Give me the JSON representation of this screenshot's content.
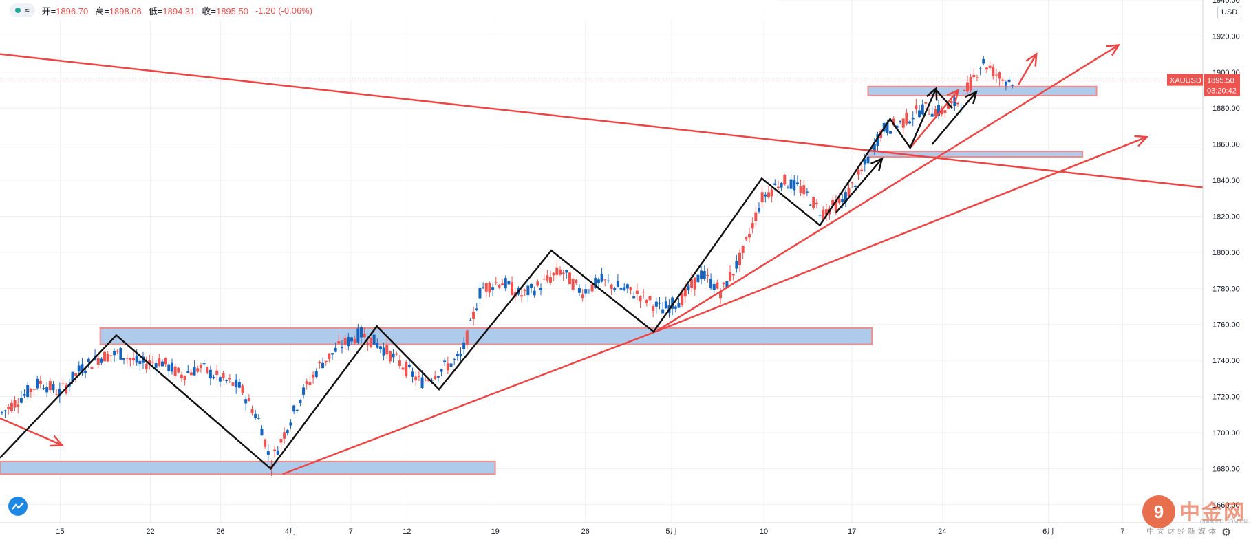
{
  "header": {
    "symbol_pill": "≈",
    "open_label": "开=",
    "open_value": "1896.70",
    "high_label": "高=",
    "high_value": "1898.06",
    "low_label": "低=",
    "low_value": "1894.31",
    "close_label": "收=",
    "close_value": "1895.50",
    "change_text": "-1.20 (-0.06%)"
  },
  "currency": "USD",
  "settings_icon": "gear-icon",
  "watermark": {
    "logo_glyph": "9",
    "title": "中金网",
    "domain": "CNGOLD.COM.CN",
    "subtitle": "中文财经新媒体"
  },
  "chart_data": {
    "type": "candlestick",
    "symbol": "XAUUSD",
    "last_price": 1895.5,
    "last_price_text": "1895.50",
    "countdown": "03:20:42",
    "ylim": [
      1650,
      1940
    ],
    "xlim": [
      0,
      60
    ],
    "y_ticks": [
      1660,
      1680,
      1700,
      1720,
      1740,
      1760,
      1780,
      1800,
      1820,
      1840,
      1860,
      1880,
      1900,
      1920,
      1940
    ],
    "y_tick_labels": [
      "1660.00",
      "1680.00",
      "1700.00",
      "1720.00",
      "1740.00",
      "1760.00",
      "1780.00",
      "1800.00",
      "1820.00",
      "1840.00",
      "1860.00",
      "1880.00",
      "1900.00",
      "1920.00",
      "1940.00"
    ],
    "x_ticks": [
      {
        "pos": 3.0,
        "label": "15"
      },
      {
        "pos": 7.5,
        "label": "22"
      },
      {
        "pos": 11.0,
        "label": "26"
      },
      {
        "pos": 14.5,
        "label": "4月"
      },
      {
        "pos": 17.5,
        "label": "7"
      },
      {
        "pos": 20.3,
        "label": "12"
      },
      {
        "pos": 24.7,
        "label": "19"
      },
      {
        "pos": 29.2,
        "label": "26"
      },
      {
        "pos": 33.5,
        "label": "5月"
      },
      {
        "pos": 38.1,
        "label": "10"
      },
      {
        "pos": 42.5,
        "label": "17"
      },
      {
        "pos": 47.0,
        "label": "24"
      },
      {
        "pos": 52.3,
        "label": "6月"
      },
      {
        "pos": 56.0,
        "label": "7"
      }
    ],
    "price_path": [
      [
        0,
        1710
      ],
      [
        2,
        1728
      ],
      [
        3,
        1722
      ],
      [
        4,
        1735
      ],
      [
        5,
        1742
      ],
      [
        6,
        1744
      ],
      [
        7,
        1738
      ],
      [
        8,
        1740
      ],
      [
        9,
        1732
      ],
      [
        10,
        1736
      ],
      [
        11,
        1730
      ],
      [
        12,
        1725
      ],
      [
        13,
        1705
      ],
      [
        13.5,
        1683
      ],
      [
        14,
        1695
      ],
      [
        15,
        1720
      ],
      [
        16,
        1738
      ],
      [
        17,
        1748
      ],
      [
        18,
        1755
      ],
      [
        19,
        1748
      ],
      [
        20,
        1738
      ],
      [
        21,
        1728
      ],
      [
        22,
        1735
      ],
      [
        23,
        1742
      ],
      [
        23.5,
        1760
      ],
      [
        24,
        1780
      ],
      [
        25,
        1784
      ],
      [
        26,
        1776
      ],
      [
        27,
        1782
      ],
      [
        28,
        1790
      ],
      [
        29,
        1778
      ],
      [
        30,
        1784
      ],
      [
        31,
        1780
      ],
      [
        32,
        1776
      ],
      [
        33,
        1768
      ],
      [
        34,
        1774
      ],
      [
        35,
        1788
      ],
      [
        36,
        1778
      ],
      [
        37,
        1798
      ],
      [
        38,
        1830
      ],
      [
        39,
        1840
      ],
      [
        40,
        1835
      ],
      [
        41,
        1822
      ],
      [
        42,
        1828
      ],
      [
        43,
        1845
      ],
      [
        44,
        1868
      ],
      [
        45,
        1872
      ],
      [
        46,
        1880
      ],
      [
        47,
        1878
      ],
      [
        48,
        1885
      ],
      [
        49,
        1906
      ],
      [
        50,
        1896
      ],
      [
        50.5,
        1895.5
      ]
    ],
    "zones": [
      {
        "x0": 0.0,
        "x1": 24.7,
        "y0": 1677,
        "y1": 1684
      },
      {
        "x0": 5.0,
        "x1": 43.5,
        "y0": 1749,
        "y1": 1758
      },
      {
        "x0": 43.3,
        "x1": 54.7,
        "y0": 1887,
        "y1": 1892
      },
      {
        "x0": 43.3,
        "x1": 54.0,
        "y0": 1853,
        "y1": 1856
      }
    ],
    "red_lines": [
      {
        "points": [
          [
            0.0,
            1910
          ],
          [
            60.0,
            1836
          ]
        ]
      },
      {
        "points": [
          [
            14.1,
            1677
          ],
          [
            32.7,
            1756
          ],
          [
            55.8,
            1915
          ]
        ],
        "arrow": true
      },
      {
        "points": [
          [
            32.7,
            1756
          ],
          [
            57.2,
            1864
          ]
        ],
        "arrow": true
      },
      {
        "points": [
          [
            0.0,
            1708
          ],
          [
            3.1,
            1693
          ]
        ],
        "arrow": true
      },
      {
        "points": [
          [
            45.4,
            1858
          ],
          [
            47.8,
            1890
          ]
        ],
        "arrow": true
      },
      {
        "points": [
          [
            50.8,
            1893
          ],
          [
            51.7,
            1910
          ]
        ],
        "arrow": true
      }
    ],
    "black_paths": [
      {
        "points": [
          [
            0.0,
            1686
          ],
          [
            5.8,
            1754
          ],
          [
            13.5,
            1680
          ],
          [
            18.8,
            1759
          ],
          [
            21.9,
            1724
          ],
          [
            27.5,
            1801
          ],
          [
            32.6,
            1756
          ],
          [
            38.0,
            1841
          ],
          [
            40.9,
            1815
          ],
          [
            44.4,
            1874
          ],
          [
            45.4,
            1858
          ],
          [
            46.7,
            1891
          ]
        ],
        "arrow": true
      },
      {
        "points": [
          [
            41.7,
            1822
          ],
          [
            44.0,
            1852
          ]
        ],
        "arrow": true
      },
      {
        "points": [
          [
            46.5,
            1860
          ],
          [
            48.7,
            1889
          ]
        ],
        "arrow": true
      },
      {
        "points": [
          [
            46.7,
            1890
          ],
          [
            47.5,
            1880
          ]
        ]
      }
    ]
  }
}
